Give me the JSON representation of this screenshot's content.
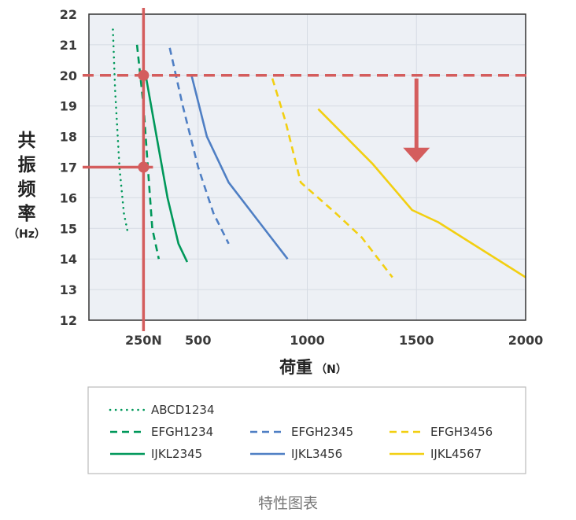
{
  "chart_data": {
    "type": "line",
    "title": "",
    "caption": "特性图表",
    "xlabel": "荷重",
    "xlabel_unit": "（N）",
    "ylabel": "共振频率",
    "ylabel_unit": "（Hz）",
    "xlim": [
      0,
      2000
    ],
    "ylim": [
      12,
      22
    ],
    "x_ticks": [
      {
        "value": 500,
        "label": "500"
      },
      {
        "value": 1000,
        "label": "1000"
      },
      {
        "value": 1500,
        "label": "1500"
      },
      {
        "value": 2000,
        "label": "2000"
      }
    ],
    "y_ticks": [
      12,
      13,
      14,
      15,
      16,
      17,
      18,
      19,
      20,
      21,
      22
    ],
    "grid": true,
    "legend_position": "bottom",
    "series": [
      {
        "name": "ABCD1234",
        "color": "#00985a",
        "dash": "dotted",
        "points": [
          [
            110,
            21.5
          ],
          [
            120,
            19.5
          ],
          [
            140,
            17.0
          ],
          [
            160,
            15.5
          ],
          [
            180,
            14.8
          ]
        ]
      },
      {
        "name": "EFGH1234",
        "color": "#00985a",
        "dash": "dashed",
        "points": [
          [
            220,
            21.0
          ],
          [
            250,
            19.0
          ],
          [
            270,
            17.0
          ],
          [
            290,
            15.0
          ],
          [
            320,
            14.0
          ]
        ]
      },
      {
        "name": "EFGH2345",
        "color": "#4f7fc4",
        "dash": "dashed",
        "points": [
          [
            370,
            20.9
          ],
          [
            430,
            19.0
          ],
          [
            500,
            17.0
          ],
          [
            570,
            15.5
          ],
          [
            640,
            14.5
          ]
        ]
      },
      {
        "name": "EFGH3456",
        "color": "#f2cf11",
        "dash": "dashed",
        "points": [
          [
            840,
            19.9
          ],
          [
            900,
            18.5
          ],
          [
            970,
            16.5
          ],
          [
            1130,
            15.5
          ],
          [
            1250,
            14.7
          ],
          [
            1390,
            13.4
          ]
        ]
      },
      {
        "name": "IJKL2345",
        "color": "#00985a",
        "dash": "solid",
        "points": [
          [
            260,
            20.0
          ],
          [
            310,
            18.0
          ],
          [
            360,
            16.0
          ],
          [
            410,
            14.5
          ],
          [
            450,
            13.9
          ]
        ]
      },
      {
        "name": "IJKL3456",
        "color": "#4f7fc4",
        "dash": "solid",
        "points": [
          [
            470,
            20.0
          ],
          [
            540,
            18.0
          ],
          [
            640,
            16.5
          ],
          [
            780,
            15.2
          ],
          [
            910,
            14.0
          ]
        ]
      },
      {
        "name": "IJKL4567",
        "color": "#f2cf11",
        "dash": "solid",
        "points": [
          [
            1050,
            18.9
          ],
          [
            1300,
            17.1
          ],
          [
            1480,
            15.6
          ],
          [
            1600,
            15.2
          ],
          [
            1800,
            14.3
          ],
          [
            2000,
            13.4
          ]
        ]
      }
    ],
    "annotations": [
      {
        "kind": "hline",
        "y": 20,
        "label": "20",
        "color": "#d45d5d",
        "dash": "dashed"
      },
      {
        "kind": "vline",
        "x": 250,
        "label": "250N",
        "color": "#d45d5d"
      },
      {
        "kind": "hline_segment",
        "y": 17,
        "x_to": 250,
        "label": "17",
        "color": "#d45d5d"
      },
      {
        "kind": "point",
        "x": 250,
        "y": 20,
        "color": "#d45d5d"
      },
      {
        "kind": "point",
        "x": 250,
        "y": 17,
        "color": "#d45d5d"
      },
      {
        "kind": "arrow",
        "x": 1500,
        "y_from": 19.9,
        "y_to": 17.2,
        "color": "#d45d5d"
      }
    ],
    "legend_rows": [
      [
        "ABCD1234"
      ],
      [
        "EFGH1234",
        "EFGH2345",
        "EFGH3456"
      ],
      [
        "IJKL2345",
        "IJKL3456",
        "IJKL4567"
      ]
    ]
  }
}
